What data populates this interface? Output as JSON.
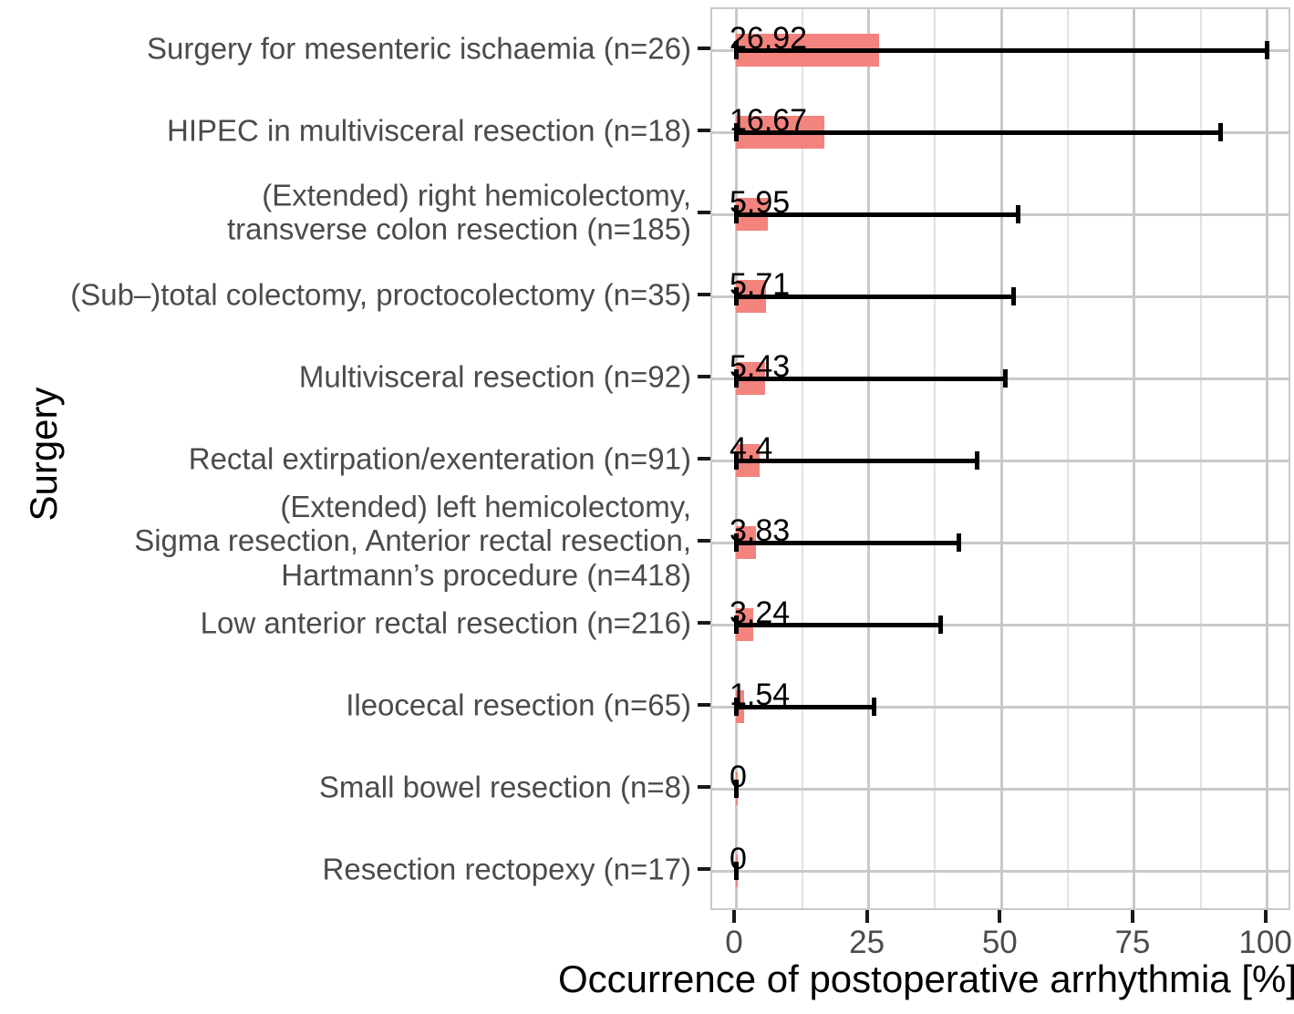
{
  "chart_data": {
    "type": "bar",
    "orientation": "horizontal",
    "xlabel": "Occurrence of postoperative arrhythmia [%]",
    "ylabel": "Surgery",
    "xlim": [
      0,
      100
    ],
    "x_major_ticks": [
      0,
      25,
      50,
      75,
      100
    ],
    "x_minor_ticks": [
      12.5,
      37.5,
      62.5,
      87.5
    ],
    "grid": true,
    "legend": "none",
    "bar_color": "#F2837D",
    "error_bar_color": "#000000",
    "grid_major_color": "#C9C9C9",
    "grid_minor_color": "#E2E2E2",
    "axis_text_color": "#4B4B4B",
    "categories": [
      "Surgery for mesenteric ischaemia (n=26)",
      "HIPEC in multivisceral resection (n=18)",
      "(Extended) right hemicolectomy,\ntransverse colon resection (n=185)",
      "(Sub–)total colectomy, proctocolectomy (n=35)",
      "Multivisceral resection (n=92)",
      "Rectal extirpation/exenteration (n=91)",
      "(Extended) left hemicolectomy,\nSigma resection, Anterior rectal resection,\nHartmann’s procedure (n=418)",
      "Low anterior rectal resection (n=216)",
      "Ileocecal resection (n=65)",
      "Small bowel resection (n=8)",
      "Resection rectopexy (n=17)"
    ],
    "values": [
      26.92,
      16.67,
      5.95,
      5.71,
      5.43,
      4.4,
      3.83,
      3.24,
      1.54,
      0,
      0
    ],
    "value_labels": [
      "26.92",
      "16.67",
      "5.95",
      "5.71",
      "5.43",
      "4.4",
      "3.83",
      "3.24",
      "1.54",
      "0",
      "0"
    ],
    "error_low": [
      0,
      0,
      0,
      0,
      0,
      0,
      0,
      0,
      0,
      0,
      0
    ],
    "error_high": [
      100,
      91.2,
      53.2,
      52.2,
      50.8,
      45.4,
      42.0,
      38.6,
      26.0,
      0,
      0
    ]
  }
}
